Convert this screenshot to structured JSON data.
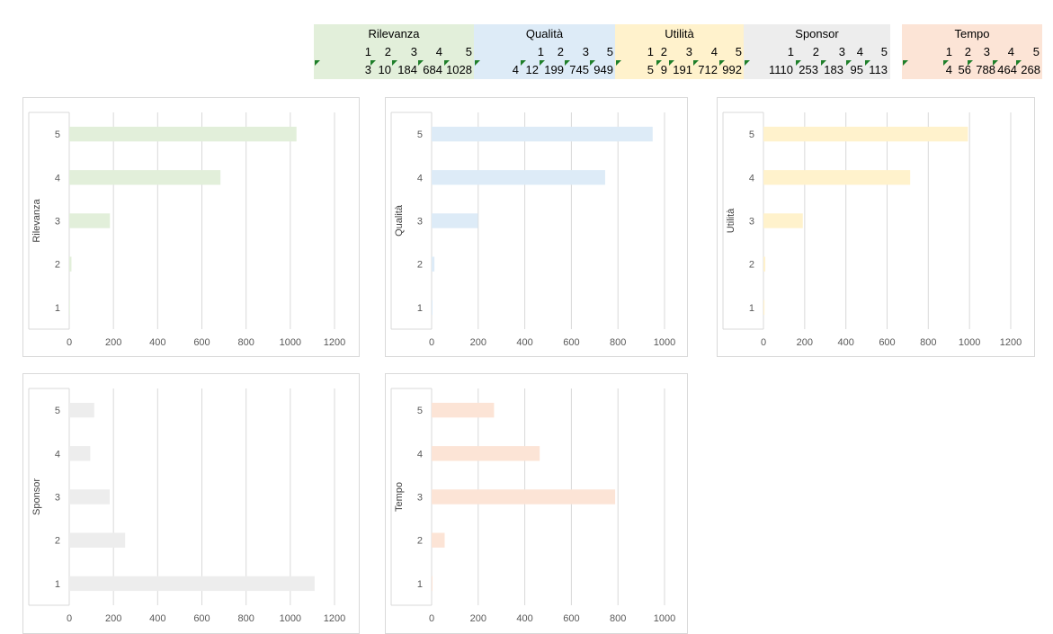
{
  "table": [
    {
      "title": "Rilevanza",
      "headers": [
        "1",
        "2",
        "3",
        "4",
        "5"
      ],
      "values": [
        "3",
        "10",
        "184",
        "684",
        "1028"
      ],
      "color": "#e2efda"
    },
    {
      "title": "Qualità",
      "headers": [
        "1",
        "2",
        "3",
        "4",
        "5"
      ],
      "values": [
        "4",
        "12",
        "199",
        "745",
        "949"
      ],
      "color": "#ddebf7"
    },
    {
      "title": "Utilità",
      "headers": [
        "1",
        "2",
        "3",
        "4",
        "5"
      ],
      "values": [
        "5",
        "9",
        "191",
        "712",
        "992"
      ],
      "color": "#fff2cc"
    },
    {
      "title": "Sponsor",
      "headers": [
        "1",
        "2",
        "3",
        "4",
        "5"
      ],
      "values": [
        "1110",
        "253",
        "183",
        "95",
        "113"
      ],
      "color": "#ededed"
    },
    {
      "title": "Tempo",
      "headers": [
        "1",
        "2",
        "3",
        "4",
        "5"
      ],
      "values": [
        "4",
        "56",
        "788",
        "464",
        "268"
      ],
      "color": "#fce4d6"
    }
  ],
  "chart_data": [
    {
      "type": "bar",
      "orientation": "horizontal",
      "ylabel": "Rilevanza",
      "categories": [
        "1",
        "2",
        "3",
        "4",
        "5"
      ],
      "values": [
        3,
        10,
        184,
        684,
        1028
      ],
      "xlim": [
        0,
        1200
      ],
      "xticks": [
        0,
        200,
        400,
        600,
        800,
        1000,
        1200
      ],
      "color": "#e2efda",
      "grid": true
    },
    {
      "type": "bar",
      "orientation": "horizontal",
      "ylabel": "Qualità",
      "categories": [
        "1",
        "2",
        "3",
        "4",
        "5"
      ],
      "values": [
        4,
        12,
        199,
        745,
        949
      ],
      "xlim": [
        0,
        1000
      ],
      "xticks": [
        0,
        200,
        400,
        600,
        800,
        1000
      ],
      "color": "#ddebf7",
      "grid": true
    },
    {
      "type": "bar",
      "orientation": "horizontal",
      "ylabel": "Utilità",
      "categories": [
        "1",
        "2",
        "3",
        "4",
        "5"
      ],
      "values": [
        5,
        9,
        191,
        712,
        992
      ],
      "xlim": [
        0,
        1200
      ],
      "xticks": [
        0,
        200,
        400,
        600,
        800,
        1000,
        1200
      ],
      "color": "#fff2cc",
      "grid": true
    },
    {
      "type": "bar",
      "orientation": "horizontal",
      "ylabel": "Sponsor",
      "categories": [
        "1",
        "2",
        "3",
        "4",
        "5"
      ],
      "values": [
        1110,
        253,
        183,
        95,
        113
      ],
      "xlim": [
        0,
        1200
      ],
      "xticks": [
        0,
        200,
        400,
        600,
        800,
        1000,
        1200
      ],
      "color": "#ededed",
      "grid": true
    },
    {
      "type": "bar",
      "orientation": "horizontal",
      "ylabel": "Tempo",
      "categories": [
        "1",
        "2",
        "3",
        "4",
        "5"
      ],
      "values": [
        4,
        56,
        788,
        464,
        268
      ],
      "xlim": [
        0,
        1000
      ],
      "xticks": [
        0,
        200,
        400,
        600,
        800,
        1000
      ],
      "color": "#fce4d6",
      "grid": true
    }
  ]
}
